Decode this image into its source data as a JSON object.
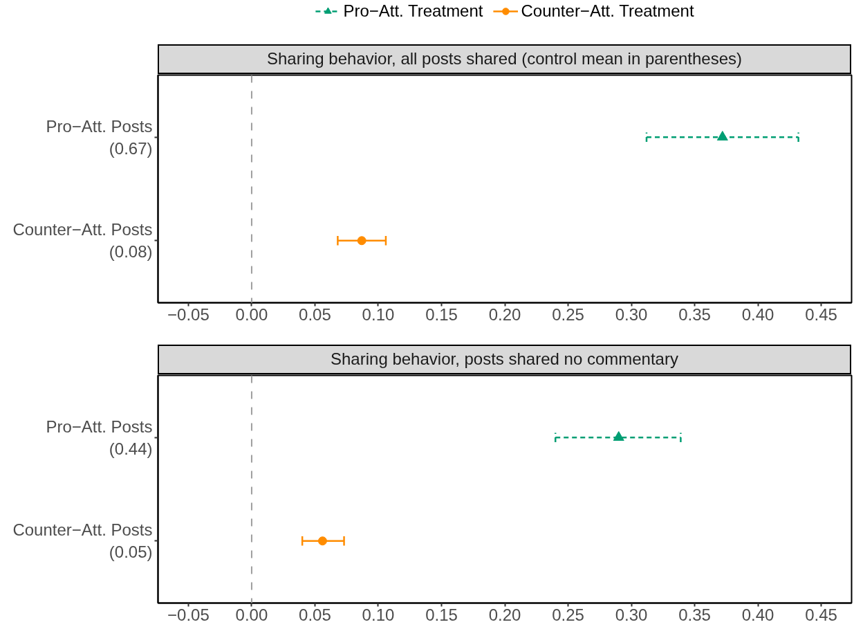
{
  "chart_data": [
    {
      "type": "scatter",
      "orientation": "horizontal",
      "title": "Sharing behavior, all posts shared (control mean in parentheses)",
      "categories": [
        "Pro−Att. Posts\n(0.67)",
        "Counter−Att. Posts\n(0.08)"
      ],
      "series": [
        {
          "name": "Pro−Att. Treatment",
          "color": "#009e73",
          "marker": "triangle",
          "line_style": "dashed",
          "values": [
            0.372,
            null
          ],
          "errors": [
            [
              0.312,
              0.432
            ],
            null
          ]
        },
        {
          "name": "Counter−Att. Treatment",
          "color": "#ff8c00",
          "marker": "circle",
          "line_style": "solid",
          "values": [
            null,
            0.087
          ],
          "errors": [
            null,
            [
              0.068,
              0.106
            ]
          ]
        }
      ],
      "xlim": [
        -0.074,
        0.474
      ],
      "xticks": [
        {
          "value": -0.05,
          "label": "−0.05"
        },
        {
          "value": 0,
          "label": "0.00"
        },
        0.05,
        {
          "value": 0.1,
          "label": "0.10"
        },
        0.15,
        {
          "value": 0.2,
          "label": "0.20"
        },
        0.25,
        {
          "value": 0.3,
          "label": "0.30"
        },
        0.35,
        {
          "value": 0.4,
          "label": "0.40"
        },
        0.45
      ],
      "ref_lines": [
        {
          "axis": "x",
          "value": 0,
          "color": "#9e9e9e",
          "line_style": "dashed"
        }
      ],
      "legend": "top",
      "grid": false
    },
    {
      "type": "scatter",
      "orientation": "horizontal",
      "title": "Sharing behavior, posts shared no commentary",
      "categories": [
        "Pro−Att. Posts\n(0.44)",
        "Counter−Att. Posts\n(0.05)"
      ],
      "series": [
        {
          "color": "#009e73",
          "marker": "triangle",
          "line_style": "dashed",
          "values": [
            0.29,
            null
          ],
          "errors": [
            [
              0.24,
              0.339
            ],
            null
          ]
        },
        {
          "color": "#ff8c00",
          "marker": "circle",
          "line_style": "solid",
          "values": [
            null,
            0.056
          ],
          "errors": [
            null,
            [
              0.04,
              0.073
            ]
          ]
        }
      ],
      "xlim": [
        -0.074,
        0.474
      ],
      "xticks": [
        {
          "value": -0.05,
          "label": "−0.05"
        },
        {
          "value": 0,
          "label": "0.00"
        },
        0.05,
        {
          "value": 0.1,
          "label": "0.10"
        },
        0.15,
        {
          "value": 0.2,
          "label": "0.20"
        },
        0.25,
        {
          "value": 0.3,
          "label": "0.30"
        },
        0.35,
        {
          "value": 0.4,
          "label": "0.40"
        },
        0.45
      ],
      "ref_lines": [
        {
          "axis": "x",
          "value": 0,
          "color": "#9e9e9e",
          "line_style": "dashed"
        }
      ],
      "grid": false
    }
  ]
}
